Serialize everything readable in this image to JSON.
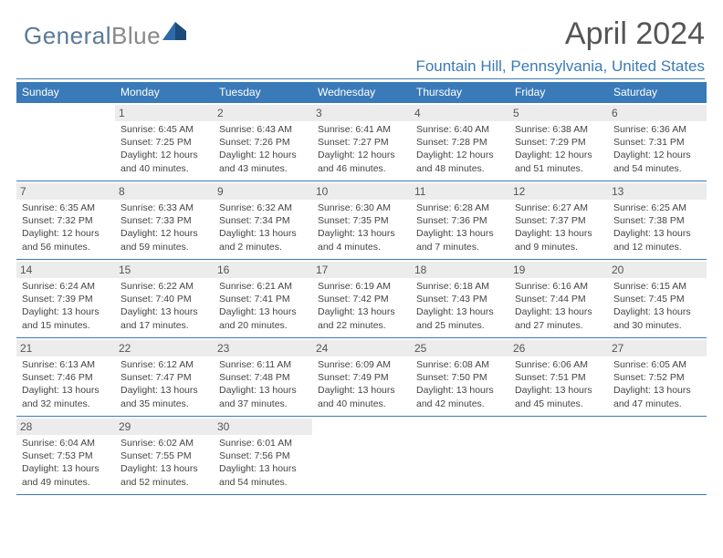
{
  "brand": {
    "part1": "General",
    "part2": "Blue"
  },
  "header": {
    "title": "April 2024",
    "location": "Fountain Hill, Pennsylvania, United States"
  },
  "colors": {
    "accent": "#3a7ab8",
    "dow_bg": "#3a7ab8",
    "dow_text": "#ffffff",
    "daynum_bg": "#ececec",
    "text": "#444444"
  },
  "dow": [
    "Sunday",
    "Monday",
    "Tuesday",
    "Wednesday",
    "Thursday",
    "Friday",
    "Saturday"
  ],
  "weeks": [
    [
      {
        "n": "",
        "sr": "",
        "ss": "",
        "dl": ""
      },
      {
        "n": "1",
        "sr": "Sunrise: 6:45 AM",
        "ss": "Sunset: 7:25 PM",
        "dl": "Daylight: 12 hours and 40 minutes."
      },
      {
        "n": "2",
        "sr": "Sunrise: 6:43 AM",
        "ss": "Sunset: 7:26 PM",
        "dl": "Daylight: 12 hours and 43 minutes."
      },
      {
        "n": "3",
        "sr": "Sunrise: 6:41 AM",
        "ss": "Sunset: 7:27 PM",
        "dl": "Daylight: 12 hours and 46 minutes."
      },
      {
        "n": "4",
        "sr": "Sunrise: 6:40 AM",
        "ss": "Sunset: 7:28 PM",
        "dl": "Daylight: 12 hours and 48 minutes."
      },
      {
        "n": "5",
        "sr": "Sunrise: 6:38 AM",
        "ss": "Sunset: 7:29 PM",
        "dl": "Daylight: 12 hours and 51 minutes."
      },
      {
        "n": "6",
        "sr": "Sunrise: 6:36 AM",
        "ss": "Sunset: 7:31 PM",
        "dl": "Daylight: 12 hours and 54 minutes."
      }
    ],
    [
      {
        "n": "7",
        "sr": "Sunrise: 6:35 AM",
        "ss": "Sunset: 7:32 PM",
        "dl": "Daylight: 12 hours and 56 minutes."
      },
      {
        "n": "8",
        "sr": "Sunrise: 6:33 AM",
        "ss": "Sunset: 7:33 PM",
        "dl": "Daylight: 12 hours and 59 minutes."
      },
      {
        "n": "9",
        "sr": "Sunrise: 6:32 AM",
        "ss": "Sunset: 7:34 PM",
        "dl": "Daylight: 13 hours and 2 minutes."
      },
      {
        "n": "10",
        "sr": "Sunrise: 6:30 AM",
        "ss": "Sunset: 7:35 PM",
        "dl": "Daylight: 13 hours and 4 minutes."
      },
      {
        "n": "11",
        "sr": "Sunrise: 6:28 AM",
        "ss": "Sunset: 7:36 PM",
        "dl": "Daylight: 13 hours and 7 minutes."
      },
      {
        "n": "12",
        "sr": "Sunrise: 6:27 AM",
        "ss": "Sunset: 7:37 PM",
        "dl": "Daylight: 13 hours and 9 minutes."
      },
      {
        "n": "13",
        "sr": "Sunrise: 6:25 AM",
        "ss": "Sunset: 7:38 PM",
        "dl": "Daylight: 13 hours and 12 minutes."
      }
    ],
    [
      {
        "n": "14",
        "sr": "Sunrise: 6:24 AM",
        "ss": "Sunset: 7:39 PM",
        "dl": "Daylight: 13 hours and 15 minutes."
      },
      {
        "n": "15",
        "sr": "Sunrise: 6:22 AM",
        "ss": "Sunset: 7:40 PM",
        "dl": "Daylight: 13 hours and 17 minutes."
      },
      {
        "n": "16",
        "sr": "Sunrise: 6:21 AM",
        "ss": "Sunset: 7:41 PM",
        "dl": "Daylight: 13 hours and 20 minutes."
      },
      {
        "n": "17",
        "sr": "Sunrise: 6:19 AM",
        "ss": "Sunset: 7:42 PM",
        "dl": "Daylight: 13 hours and 22 minutes."
      },
      {
        "n": "18",
        "sr": "Sunrise: 6:18 AM",
        "ss": "Sunset: 7:43 PM",
        "dl": "Daylight: 13 hours and 25 minutes."
      },
      {
        "n": "19",
        "sr": "Sunrise: 6:16 AM",
        "ss": "Sunset: 7:44 PM",
        "dl": "Daylight: 13 hours and 27 minutes."
      },
      {
        "n": "20",
        "sr": "Sunrise: 6:15 AM",
        "ss": "Sunset: 7:45 PM",
        "dl": "Daylight: 13 hours and 30 minutes."
      }
    ],
    [
      {
        "n": "21",
        "sr": "Sunrise: 6:13 AM",
        "ss": "Sunset: 7:46 PM",
        "dl": "Daylight: 13 hours and 32 minutes."
      },
      {
        "n": "22",
        "sr": "Sunrise: 6:12 AM",
        "ss": "Sunset: 7:47 PM",
        "dl": "Daylight: 13 hours and 35 minutes."
      },
      {
        "n": "23",
        "sr": "Sunrise: 6:11 AM",
        "ss": "Sunset: 7:48 PM",
        "dl": "Daylight: 13 hours and 37 minutes."
      },
      {
        "n": "24",
        "sr": "Sunrise: 6:09 AM",
        "ss": "Sunset: 7:49 PM",
        "dl": "Daylight: 13 hours and 40 minutes."
      },
      {
        "n": "25",
        "sr": "Sunrise: 6:08 AM",
        "ss": "Sunset: 7:50 PM",
        "dl": "Daylight: 13 hours and 42 minutes."
      },
      {
        "n": "26",
        "sr": "Sunrise: 6:06 AM",
        "ss": "Sunset: 7:51 PM",
        "dl": "Daylight: 13 hours and 45 minutes."
      },
      {
        "n": "27",
        "sr": "Sunrise: 6:05 AM",
        "ss": "Sunset: 7:52 PM",
        "dl": "Daylight: 13 hours and 47 minutes."
      }
    ],
    [
      {
        "n": "28",
        "sr": "Sunrise: 6:04 AM",
        "ss": "Sunset: 7:53 PM",
        "dl": "Daylight: 13 hours and 49 minutes."
      },
      {
        "n": "29",
        "sr": "Sunrise: 6:02 AM",
        "ss": "Sunset: 7:55 PM",
        "dl": "Daylight: 13 hours and 52 minutes."
      },
      {
        "n": "30",
        "sr": "Sunrise: 6:01 AM",
        "ss": "Sunset: 7:56 PM",
        "dl": "Daylight: 13 hours and 54 minutes."
      },
      {
        "n": "",
        "sr": "",
        "ss": "",
        "dl": ""
      },
      {
        "n": "",
        "sr": "",
        "ss": "",
        "dl": ""
      },
      {
        "n": "",
        "sr": "",
        "ss": "",
        "dl": ""
      },
      {
        "n": "",
        "sr": "",
        "ss": "",
        "dl": ""
      }
    ]
  ]
}
